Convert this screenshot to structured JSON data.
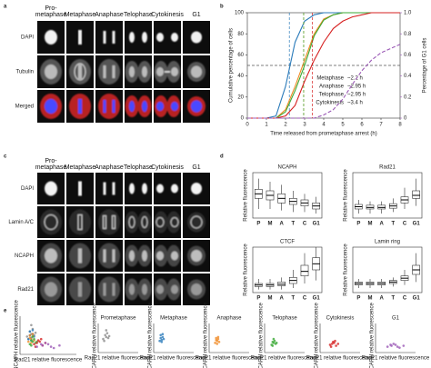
{
  "panel_labels": [
    "a",
    "b",
    "c",
    "d",
    "e"
  ],
  "panel_a": {
    "columns": [
      "Pro-metaphase",
      "Metaphase",
      "Anaphase",
      "Telophase",
      "Cytokinesis",
      "G1"
    ],
    "rows": [
      "DAPI",
      "Tubulin",
      "Merged"
    ]
  },
  "panel_c": {
    "columns": [
      "Pro-metaphase",
      "Metaphase",
      "Anaphase",
      "Telophase",
      "Cytokinesis",
      "G1"
    ],
    "rows": [
      "DAPI",
      "Lamin A/C",
      "NCAPH",
      "Rad21"
    ]
  },
  "chart_data": [
    {
      "type": "line",
      "xlabel": "Time released from prometaphase arrest (h)",
      "ylabel": "Cumulative percentage of cells",
      "y2label": "Percentage of G1 cells",
      "x": [
        0,
        0.5,
        1,
        1.5,
        2,
        2.5,
        3,
        3.5,
        4,
        4.5,
        5,
        5.5,
        6,
        6.5,
        7,
        7.5,
        8
      ],
      "xlim": [
        0,
        8
      ],
      "xticks": [
        0,
        1,
        2,
        3,
        4,
        5,
        6,
        7,
        8
      ],
      "ylim": [
        0,
        100
      ],
      "yticks": [
        0,
        20,
        40,
        60,
        80,
        100
      ],
      "y2lim": [
        0,
        1
      ],
      "y2ticks": [
        0,
        0.2,
        0.4,
        0.6,
        0.8,
        {
          "value": 1,
          "label": "1.0"
        }
      ],
      "threshold": 50,
      "series": [
        {
          "name": "Metaphase",
          "half_time_label": "~2.2 h",
          "half_time": 2.2,
          "color": "#2b7bba",
          "values": [
            0,
            0,
            0,
            2,
            30,
            72,
            92,
            98,
            100,
            100,
            100,
            100,
            100,
            100,
            100,
            100,
            100
          ]
        },
        {
          "name": "Anaphase",
          "half_time_label": "~2.95 h",
          "half_time": 2.95,
          "color": "#f08a24",
          "values": [
            0,
            0,
            0,
            0,
            8,
            30,
            55,
            80,
            94,
            98,
            100,
            100,
            100,
            100,
            100,
            100,
            100
          ]
        },
        {
          "name": "Telophase",
          "half_time_label": "~2.95 h",
          "half_time": 2.95,
          "color": "#3aa935",
          "values": [
            0,
            0,
            0,
            0,
            6,
            26,
            50,
            78,
            93,
            98,
            100,
            100,
            100,
            100,
            100,
            100,
            100
          ]
        },
        {
          "name": "Cytokinesis",
          "half_time_label": "~3.4 h",
          "half_time": 3.4,
          "color": "#d62020",
          "values": [
            0,
            0,
            0,
            0,
            2,
            12,
            35,
            55,
            72,
            85,
            92,
            96,
            98,
            100,
            100,
            100,
            100
          ]
        },
        {
          "axis": "y2",
          "color": "#9b59b6",
          "dashed": true,
          "values": [
            0,
            0,
            0,
            0,
            0,
            0,
            0,
            0,
            0.03,
            0.08,
            0.18,
            0.32,
            0.45,
            0.55,
            0.62,
            0.66,
            0.7
          ]
        }
      ]
    },
    {
      "type": "box",
      "title": "NCAPH",
      "ylabel": "Relative fluorescence",
      "ylim": [
        0,
        3
      ],
      "categories": [
        "P",
        "M",
        "A",
        "T",
        "C",
        "G1"
      ],
      "colors": [
        "#8c8c8c",
        "#2b7bba",
        "#f08a24",
        "#3aa935",
        "#d62020",
        "#9b59b6"
      ],
      "boxes": [
        [
          0.6,
          1.3,
          1.6,
          1.9,
          2.6
        ],
        [
          0.6,
          1.2,
          1.5,
          1.8,
          2.4
        ],
        [
          0.5,
          1.0,
          1.3,
          1.6,
          2.2
        ],
        [
          0.4,
          0.9,
          1.1,
          1.3,
          1.8
        ],
        [
          0.4,
          0.8,
          1.0,
          1.2,
          1.6
        ],
        [
          0.3,
          0.6,
          0.8,
          1.0,
          1.4
        ]
      ]
    },
    {
      "type": "box",
      "title": "Rad21",
      "ylabel": "Relative fluorescence",
      "ylim": [
        0,
        3
      ],
      "categories": [
        "P",
        "M",
        "A",
        "T",
        "C",
        "G1"
      ],
      "colors": [
        "#8c8c8c",
        "#2b7bba",
        "#f08a24",
        "#3aa935",
        "#d62020",
        "#9b59b6"
      ],
      "boxes": [
        [
          0.3,
          0.6,
          0.75,
          0.9,
          1.2
        ],
        [
          0.3,
          0.6,
          0.7,
          0.85,
          1.1
        ],
        [
          0.3,
          0.6,
          0.7,
          0.85,
          1.1
        ],
        [
          0.4,
          0.65,
          0.8,
          0.95,
          1.3
        ],
        [
          0.6,
          1.0,
          1.2,
          1.4,
          2.0
        ],
        [
          0.8,
          1.3,
          1.5,
          1.8,
          2.6
        ]
      ]
    },
    {
      "type": "box",
      "title": "CTCF",
      "ylabel": "Relative fluorescence",
      "ylim": [
        0,
        3
      ],
      "categories": [
        "P",
        "M",
        "A",
        "T",
        "C",
        "G1"
      ],
      "colors": [
        "#8c8c8c",
        "#2b7bba",
        "#f08a24",
        "#3aa935",
        "#d62020",
        "#9b59b6"
      ],
      "boxes": [
        [
          0.2,
          0.4,
          0.5,
          0.6,
          0.9
        ],
        [
          0.2,
          0.4,
          0.5,
          0.6,
          0.9
        ],
        [
          0.2,
          0.45,
          0.55,
          0.7,
          1.0
        ],
        [
          0.3,
          0.6,
          0.8,
          1.0,
          1.5
        ],
        [
          0.6,
          1.1,
          1.4,
          1.8,
          2.6
        ],
        [
          0.8,
          1.5,
          1.9,
          2.3,
          3.0
        ]
      ]
    },
    {
      "type": "box",
      "title": "Lamin ring",
      "ylabel": "Relative fluorescence",
      "ylim": [
        0,
        3
      ],
      "categories": [
        "P",
        "M",
        "A",
        "T",
        "C",
        "G1"
      ],
      "colors": [
        "#8c8c8c",
        "#2b7bba",
        "#f08a24",
        "#3aa935",
        "#d62020",
        "#9b59b6"
      ],
      "boxes": [
        [
          0.3,
          0.5,
          0.6,
          0.7,
          0.9
        ],
        [
          0.3,
          0.5,
          0.6,
          0.7,
          0.9
        ],
        [
          0.3,
          0.5,
          0.6,
          0.7,
          0.9
        ],
        [
          0.4,
          0.6,
          0.7,
          0.8,
          1.0
        ],
        [
          0.5,
          0.8,
          0.95,
          1.1,
          1.5
        ],
        [
          0.7,
          1.2,
          1.5,
          1.8,
          2.6
        ]
      ]
    },
    {
      "type": "scatter",
      "xlabel": "Rad21 relative fluorescence",
      "ylabel": "NCAPH relative fluorescence",
      "xlim": [
        0,
        4
      ],
      "ylim": [
        0,
        3
      ],
      "series": [
        {
          "name": "Prometaphase",
          "color": "#8c8c8c",
          "x": [
            0.5,
            0.7,
            0.8,
            0.9,
            1.0,
            0.6,
            1.1,
            0.8
          ],
          "y": [
            1.4,
            1.8,
            1.6,
            2.0,
            1.5,
            1.2,
            1.7,
            2.3
          ]
        },
        {
          "name": "Metaphase",
          "color": "#2b7bba",
          "x": [
            0.6,
            0.7,
            0.8,
            0.9,
            0.7,
            1.0,
            0.8,
            0.9
          ],
          "y": [
            1.2,
            1.5,
            1.3,
            1.6,
            1.8,
            1.4,
            1.1,
            1.9
          ]
        },
        {
          "name": "Anaphase",
          "color": "#f08a24",
          "x": [
            0.6,
            0.8,
            0.9,
            0.7,
            1.0,
            0.8,
            0.9,
            0.7
          ],
          "y": [
            1.0,
            1.2,
            1.4,
            1.5,
            1.1,
            0.9,
            1.6,
            1.3
          ]
        },
        {
          "name": "Telophase",
          "color": "#3aa935",
          "x": [
            0.7,
            0.9,
            1.0,
            0.8,
            1.1,
            0.9,
            1.2,
            0.8
          ],
          "y": [
            0.8,
            1.0,
            1.2,
            1.1,
            0.9,
            1.4,
            1.0,
            0.7
          ]
        },
        {
          "name": "Cytokinesis",
          "color": "#d62020",
          "x": [
            1.0,
            1.2,
            1.4,
            1.6,
            1.3,
            1.1,
            1.8,
            1.5
          ],
          "y": [
            0.8,
            0.9,
            1.0,
            0.7,
            1.1,
            0.6,
            0.9,
            1.2
          ]
        },
        {
          "name": "G1",
          "color": "#9b59b6",
          "x": [
            1.2,
            1.6,
            2.0,
            2.4,
            1.8,
            2.2,
            2.8,
            1.5
          ],
          "y": [
            0.6,
            0.7,
            0.8,
            0.5,
            0.9,
            0.6,
            0.7,
            0.8
          ]
        }
      ]
    }
  ]
}
